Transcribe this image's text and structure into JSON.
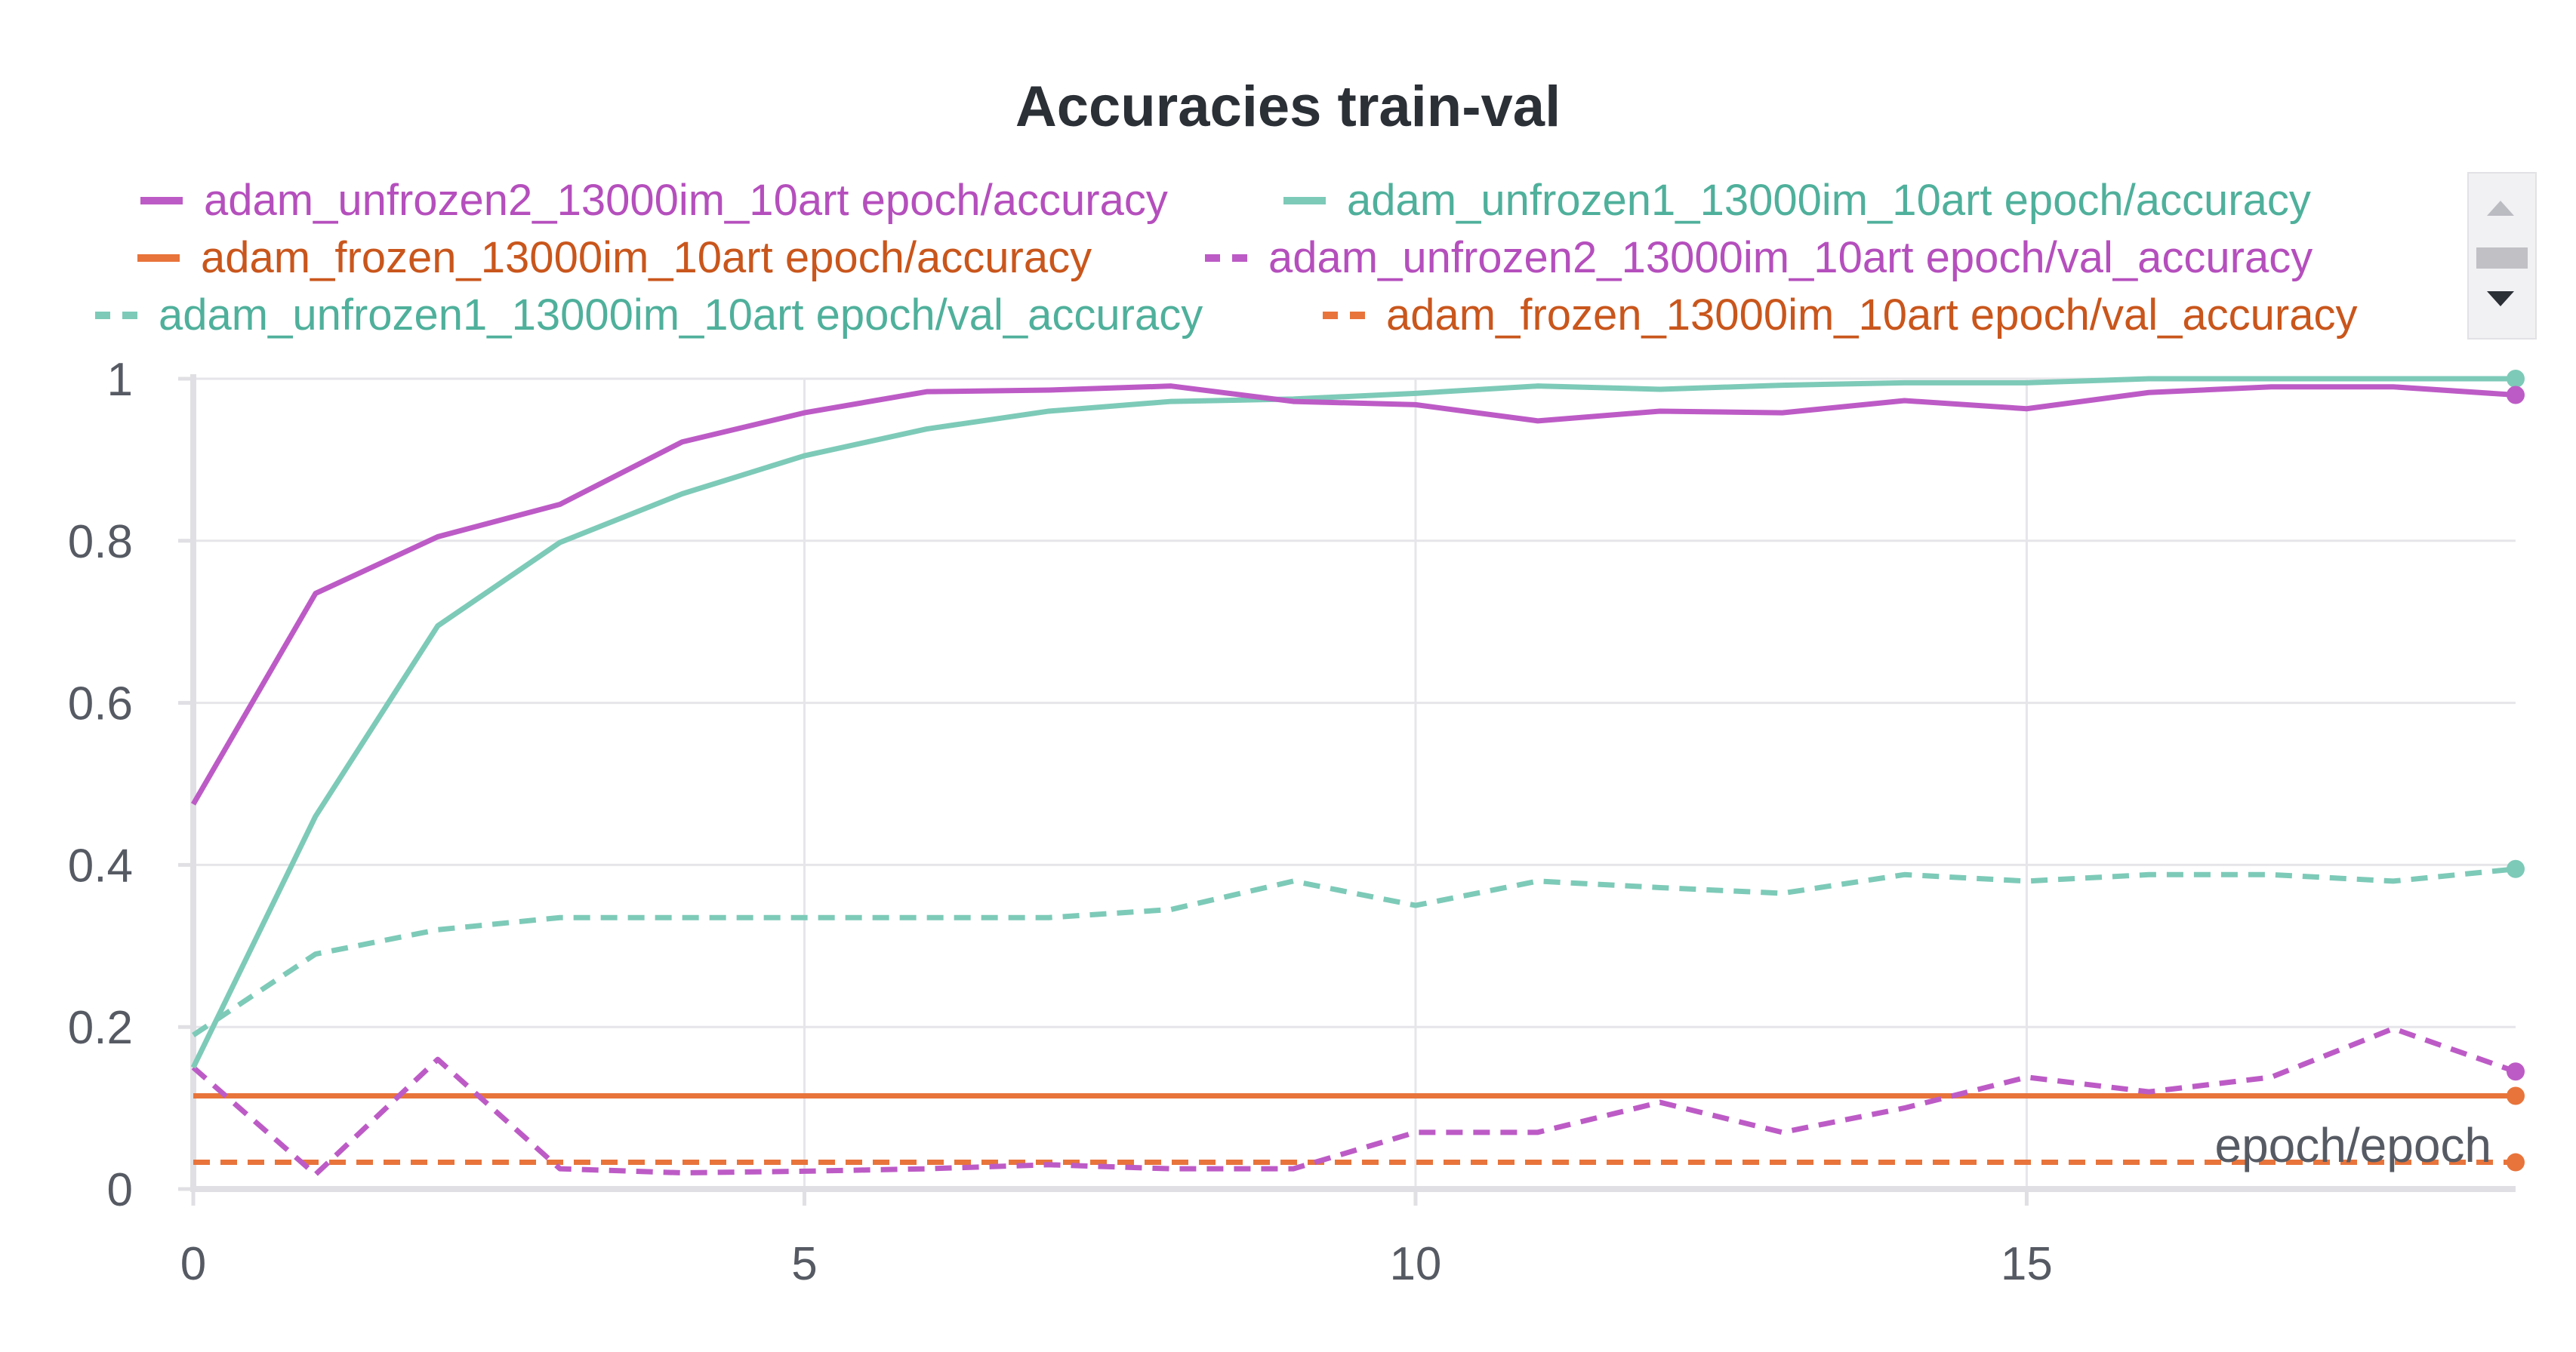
{
  "chart_data": {
    "type": "line",
    "title": "Accuracies train-val",
    "xlabel": "epoch/epoch",
    "ylabel": "",
    "xlim": [
      0,
      19
    ],
    "ylim": [
      0,
      1
    ],
    "x_ticks": [
      0,
      5,
      10,
      15
    ],
    "x_tick_labels": [
      "0",
      "5",
      "10",
      "15"
    ],
    "y_ticks": [
      0,
      0.2,
      0.4,
      0.6,
      0.8,
      1
    ],
    "y_tick_labels": [
      "0",
      "0.2",
      "0.4",
      "0.6",
      "0.8",
      "1"
    ],
    "grid": true,
    "legend_position": "top",
    "x": [
      0,
      1,
      2,
      3,
      4,
      5,
      6,
      7,
      8,
      9,
      10,
      11,
      12,
      13,
      14,
      15,
      16,
      17,
      18,
      19
    ],
    "series": [
      {
        "name": "adam_unfrozen2_13000im_10art epoch/accuracy",
        "color": "#bd5bc6",
        "dash": false,
        "values": [
          0.475,
          0.735,
          0.805,
          0.845,
          0.922,
          0.958,
          0.984,
          0.986,
          0.991,
          0.972,
          0.968,
          0.948,
          0.96,
          0.958,
          0.973,
          0.963,
          0.983,
          0.99,
          0.99,
          0.98
        ]
      },
      {
        "name": "adam_unfrozen1_13000im_10art epoch/accuracy",
        "color": "#7dcab8",
        "dash": false,
        "values": [
          0.15,
          0.46,
          0.695,
          0.798,
          0.858,
          0.905,
          0.938,
          0.96,
          0.972,
          0.975,
          0.982,
          0.991,
          0.987,
          0.992,
          0.995,
          0.995,
          1.0,
          1.0,
          1.0,
          1.0
        ]
      },
      {
        "name": "adam_frozen_13000im_10art epoch/accuracy",
        "color": "#e8743b",
        "dash": false,
        "values": [
          0.115,
          0.115,
          0.115,
          0.115,
          0.115,
          0.115,
          0.115,
          0.115,
          0.115,
          0.115,
          0.115,
          0.115,
          0.115,
          0.115,
          0.115,
          0.115,
          0.115,
          0.115,
          0.115,
          0.115
        ]
      },
      {
        "name": "adam_unfrozen2_13000im_10art epoch/val_accuracy",
        "color": "#bd5bc6",
        "dash": true,
        "values": [
          0.15,
          0.018,
          0.16,
          0.025,
          0.02,
          0.022,
          0.025,
          0.03,
          0.025,
          0.025,
          0.07,
          0.07,
          0.107,
          0.07,
          0.1,
          0.138,
          0.12,
          0.138,
          0.198,
          0.145
        ]
      },
      {
        "name": "adam_unfrozen1_13000im_10art epoch/val_accuracy",
        "color": "#7dcab8",
        "dash": true,
        "values": [
          0.19,
          0.29,
          0.32,
          0.335,
          0.335,
          0.335,
          0.335,
          0.335,
          0.345,
          0.38,
          0.35,
          0.38,
          0.372,
          0.365,
          0.388,
          0.38,
          0.388,
          0.388,
          0.38,
          0.395
        ]
      },
      {
        "name": "adam_frozen_13000im_10art epoch/val_accuracy",
        "color": "#e8743b",
        "dash": true,
        "values": [
          0.033,
          0.033,
          0.033,
          0.033,
          0.033,
          0.033,
          0.033,
          0.033,
          0.033,
          0.033,
          0.033,
          0.033,
          0.033,
          0.033,
          0.033,
          0.033,
          0.033,
          0.033,
          0.033,
          0.033
        ]
      }
    ],
    "legend_text_colors": [
      "#b54fbd",
      "#4fb09b",
      "#c9561c",
      "#b54fbd",
      "#4fb09b",
      "#c9561c"
    ],
    "axis_color": "#e0e0e4",
    "tick_color": "#565a63"
  }
}
